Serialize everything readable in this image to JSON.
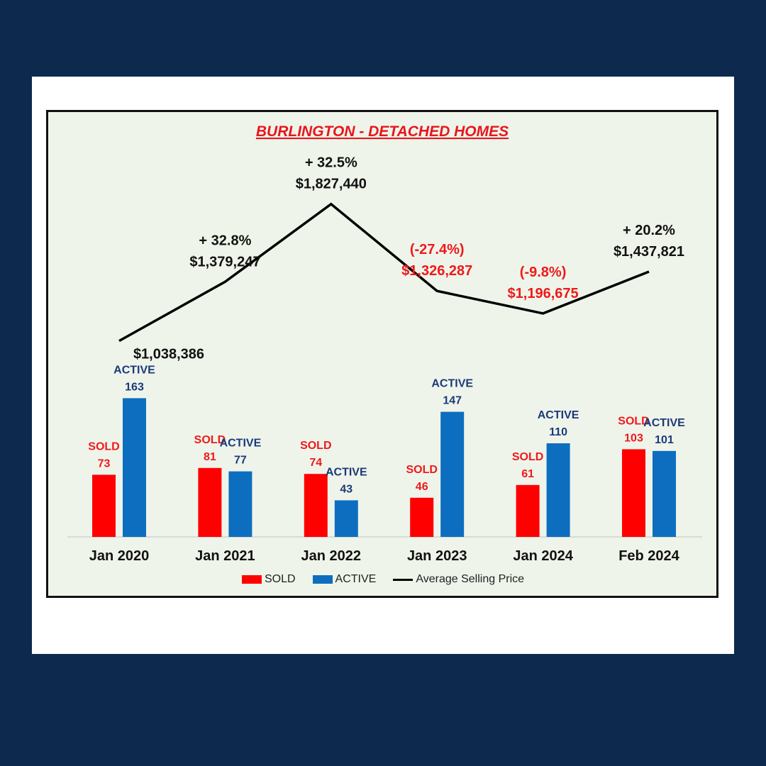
{
  "colors": {
    "sold": "#ff0000",
    "active": "#0d6ebf",
    "line": "#000000",
    "title": "#e8151c",
    "negative": "#ee1a1a",
    "active_label": "#1a3a7a",
    "sold_label": "#ee1a1a",
    "background": "#0d2a4e",
    "plot_bg": "#eff4ea"
  },
  "chart_data": {
    "type": "bar",
    "title": "BURLINGTON - DETACHED HOMES",
    "categories": [
      "Jan 2020",
      "Jan 2021",
      "Jan 2022",
      "Jan 2023",
      "Jan 2024",
      "Feb 2024"
    ],
    "series": [
      {
        "name": "SOLD",
        "values": [
          73,
          81,
          74,
          46,
          61,
          103
        ]
      },
      {
        "name": "ACTIVE",
        "values": [
          163,
          77,
          43,
          147,
          110,
          101
        ]
      }
    ],
    "line_series": {
      "name": "Average Selling Price",
      "values": [
        1038386,
        1379247,
        1827440,
        1326287,
        1196675,
        1437821
      ],
      "price_labels": [
        "$1,038,386",
        "$1,379,247",
        "$1,827,440",
        "$1,326,287",
        "$1,196,675",
        "$1,437,821"
      ],
      "change_labels": [
        "",
        "+ 32.8%",
        "+ 32.5%",
        "(-27.4%)",
        "(-9.8%)",
        "+ 20.2%"
      ],
      "negative": [
        false,
        false,
        false,
        true,
        true,
        false
      ]
    },
    "bar_label_sold": "SOLD",
    "bar_label_active": "ACTIVE",
    "legend": [
      "SOLD",
      "ACTIVE",
      "Average Selling Price"
    ],
    "legend_position": "bottom",
    "grid": false
  }
}
